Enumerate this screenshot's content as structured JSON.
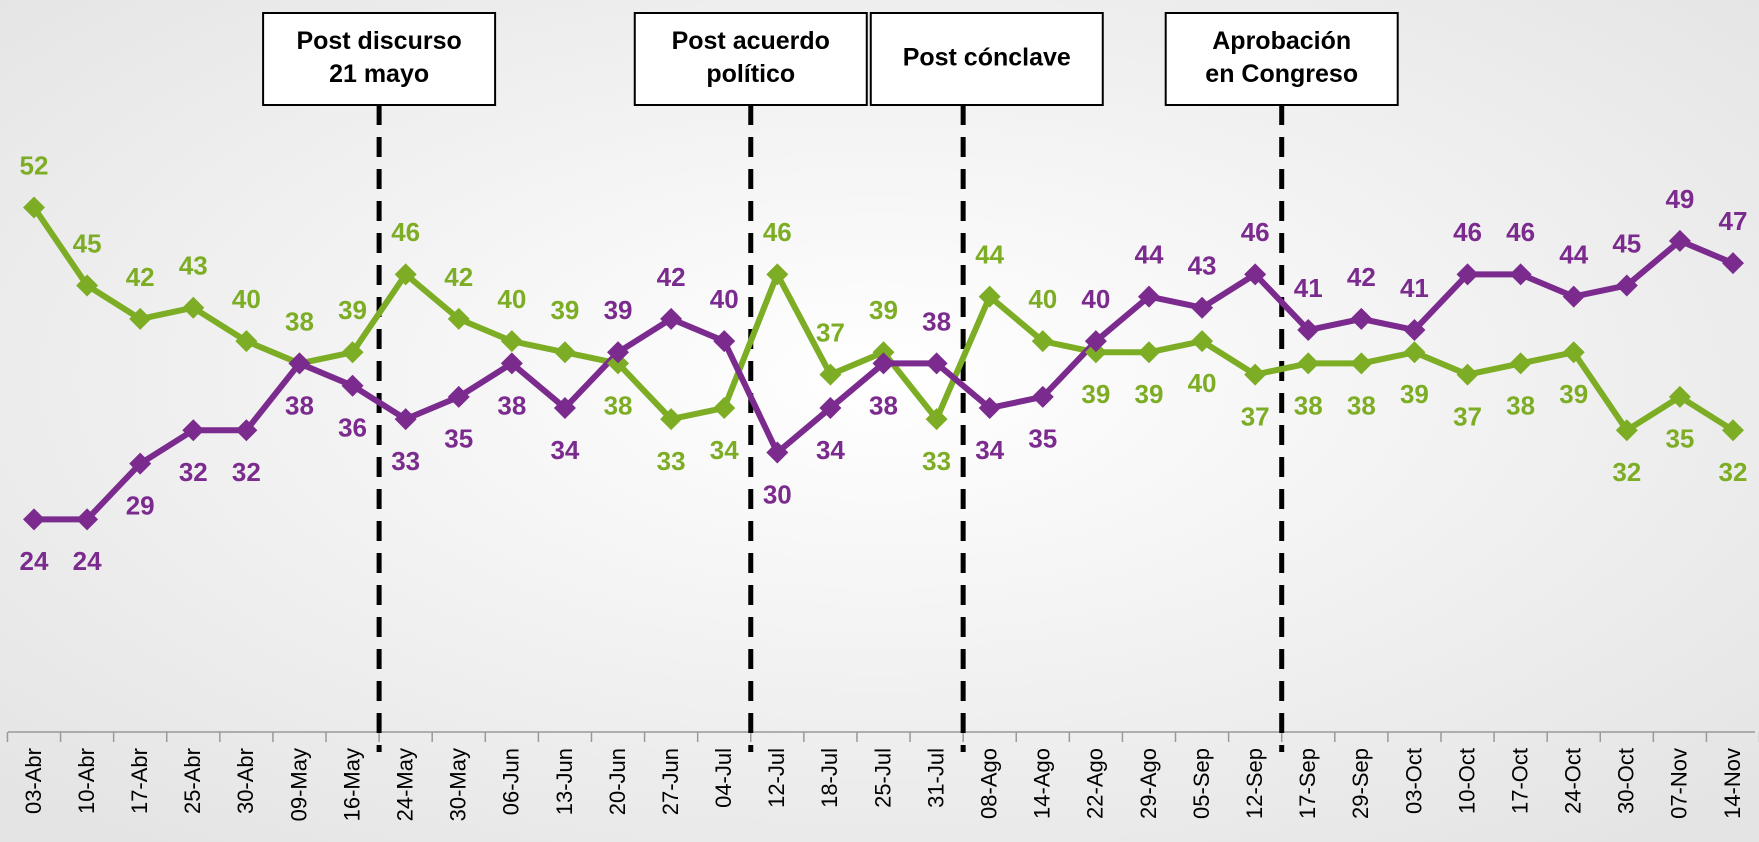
{
  "chart_data": {
    "type": "line",
    "categories": [
      "03-Abr",
      "10-Abr",
      "17-Abr",
      "25-Abr",
      "30-Abr",
      "09-May",
      "16-May",
      "24-May",
      "30-May",
      "06-Jun",
      "13-Jun",
      "20-Jun",
      "27-Jun",
      "04-Jul",
      "12-Jul",
      "18-Jul",
      "25-Jul",
      "31-Jul",
      "08-Ago",
      "14-Ago",
      "22-Ago",
      "29-Ago",
      "05-Sep",
      "12-Sep",
      "17-Sep",
      "29-Sep",
      "03-Oct",
      "10-Oct",
      "17-Oct",
      "24-Oct",
      "30-Oct",
      "07-Nov",
      "14-Nov"
    ],
    "series": [
      {
        "color": "#7cad24",
        "values": [
          52,
          45,
          42,
          43,
          40,
          38,
          39,
          46,
          42,
          40,
          39,
          38,
          33,
          34,
          46,
          37,
          39,
          33,
          44,
          40,
          39,
          39,
          40,
          37,
          38,
          38,
          39,
          37,
          38,
          39,
          32,
          35,
          32
        ]
      },
      {
        "color": "#7b2a8e",
        "values": [
          24,
          24,
          29,
          32,
          32,
          38,
          36,
          33,
          35,
          38,
          34,
          39,
          42,
          40,
          30,
          34,
          38,
          38,
          34,
          35,
          40,
          44,
          43,
          46,
          41,
          42,
          41,
          46,
          46,
          44,
          45,
          49,
          47
        ]
      }
    ],
    "ylim": [
      5,
      70
    ],
    "annotations": [
      {
        "lines": [
          "Post discurso",
          "21 mayo"
        ],
        "x": 6.5
      },
      {
        "lines": [
          "Post acuerdo",
          "político"
        ],
        "x": 13.5
      },
      {
        "lines": [
          "Post cónclave"
        ],
        "x": 17.5
      },
      {
        "lines": [
          "Aprobación",
          "en Congreso"
        ],
        "x": 23.5
      }
    ]
  }
}
